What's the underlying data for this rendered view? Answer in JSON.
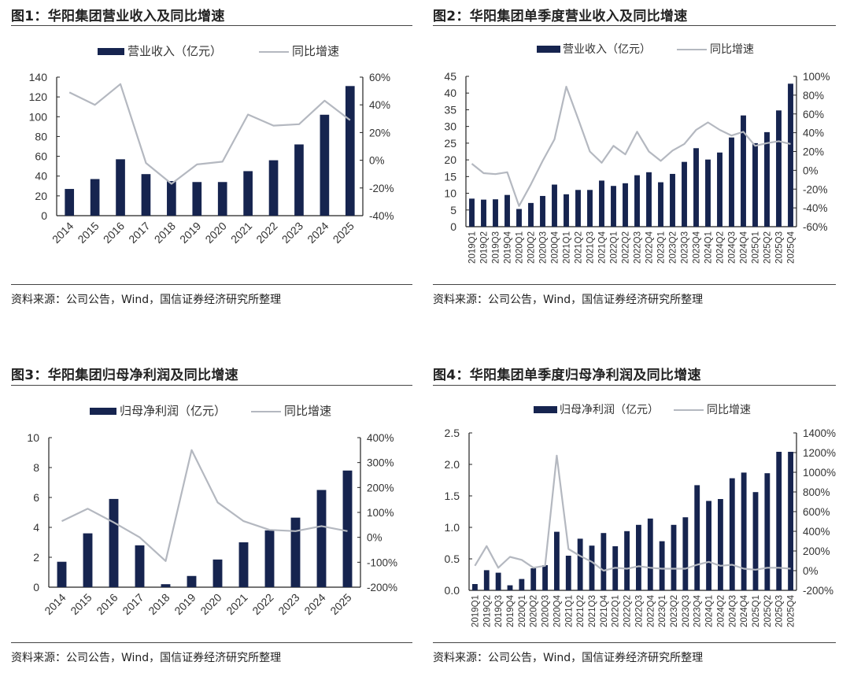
{
  "source_note": "资料来源：公司公告，Wind，国信证券经济研究所整理",
  "colors": {
    "bar": "#16244f",
    "line": "#b4b8c0",
    "axis": "#222222"
  },
  "chart_data": [
    {
      "type": "bar",
      "title": "图1：华阳集团营业收入及同比增速",
      "legend": [
        "营业收入（亿元）",
        "同比增速"
      ],
      "legend_position": "top",
      "categories": [
        "2014",
        "2015",
        "2016",
        "2017",
        "2018",
        "2019",
        "2020",
        "2021",
        "2022",
        "2023",
        "2024",
        "2025"
      ],
      "x_label_rotate": "diagonal",
      "series": [
        {
          "name": "营业收入（亿元）",
          "kind": "bar",
          "axis": "left",
          "values": [
            27,
            37,
            57,
            42,
            35,
            34,
            34,
            45,
            56,
            72,
            102,
            131
          ]
        },
        {
          "name": "同比增速",
          "kind": "line",
          "axis": "right",
          "values": [
            49,
            40,
            55,
            -2,
            -17,
            -3,
            -1,
            33,
            25,
            26,
            43,
            29
          ]
        }
      ],
      "ylim": [
        0,
        140
      ],
      "yticks": [
        "0",
        "20",
        "40",
        "60",
        "80",
        "100",
        "120",
        "140"
      ],
      "y2lim": [
        -40,
        60
      ],
      "y2ticks": [
        "-40%",
        "-20%",
        "0%",
        "20%",
        "40%",
        "60%"
      ]
    },
    {
      "type": "bar",
      "title": "图2：华阳集团单季度营业收入及同比增速",
      "legend": [
        "营业收入（亿元）",
        "同比增速"
      ],
      "legend_position": "top",
      "categories": [
        "2019Q1",
        "2019Q2",
        "2019Q3",
        "2019Q4",
        "2020Q1",
        "2020Q2",
        "2020Q3",
        "2020Q4",
        "2021Q1",
        "2021Q2",
        "2021Q3",
        "2021Q4",
        "2022Q1",
        "2022Q2",
        "2022Q3",
        "2022Q4",
        "2023Q1",
        "2023Q2",
        "2023Q3",
        "2023Q4",
        "2024Q1",
        "2024Q2",
        "2024Q3",
        "2024Q4",
        "2025Q1",
        "2025Q2",
        "2025Q3",
        "2025Q4"
      ],
      "x_label_rotate": "vertical",
      "series": [
        {
          "name": "营业收入（亿元）",
          "kind": "bar",
          "axis": "left",
          "values": [
            8.4,
            8.1,
            8.2,
            9.5,
            5.3,
            7.1,
            9.2,
            12.6,
            9.7,
            11.0,
            11.0,
            13.8,
            12.2,
            13.0,
            15.4,
            16.3,
            13.3,
            15.8,
            19.4,
            23.5,
            20.1,
            22.2,
            26.7,
            33.3,
            25.0,
            28.3,
            34.8,
            42.8
          ]
        },
        {
          "name": "同比增速",
          "kind": "line",
          "axis": "right",
          "values": [
            7,
            -3,
            -4,
            -2,
            -38,
            -15,
            10,
            33,
            89,
            55,
            20,
            8,
            26,
            17,
            41,
            20,
            10,
            21,
            28,
            43,
            51,
            43,
            37,
            41,
            26,
            29,
            31,
            28
          ]
        }
      ],
      "ylim": [
        0,
        45
      ],
      "yticks": [
        "0",
        "5",
        "10",
        "15",
        "20",
        "25",
        "30",
        "35",
        "40",
        "45"
      ],
      "y2lim": [
        -60,
        100
      ],
      "y2ticks": [
        "-60%",
        "-40%",
        "-20%",
        "0%",
        "20%",
        "40%",
        "60%",
        "80%",
        "100%"
      ]
    },
    {
      "type": "bar",
      "title": "图3：华阳集团归母净利润及同比增速",
      "legend": [
        "归母净利润（亿元）",
        "同比增速"
      ],
      "legend_position": "top",
      "categories": [
        "2014",
        "2015",
        "2016",
        "2017",
        "2018",
        "2019",
        "2020",
        "2021",
        "2022",
        "2023",
        "2024",
        "2025"
      ],
      "x_label_rotate": "diagonal",
      "series": [
        {
          "name": "归母净利润（亿元）",
          "kind": "bar",
          "axis": "left",
          "values": [
            1.7,
            3.6,
            5.9,
            2.8,
            0.2,
            0.75,
            1.85,
            3.0,
            3.8,
            4.65,
            6.5,
            7.8
          ]
        },
        {
          "name": "同比增速",
          "kind": "line",
          "axis": "right",
          "values": [
            65,
            115,
            60,
            0,
            -95,
            350,
            140,
            65,
            30,
            25,
            45,
            25
          ]
        }
      ],
      "ylim": [
        0,
        10
      ],
      "yticks": [
        "0",
        "2",
        "4",
        "6",
        "8",
        "10"
      ],
      "y2lim": [
        -200,
        400
      ],
      "y2ticks": [
        "-200%",
        "-100%",
        "0%",
        "100%",
        "200%",
        "300%",
        "400%"
      ]
    },
    {
      "type": "bar",
      "title": "图4：华阳集团单季度归母净利润及同比增速",
      "legend": [
        "归母净利润（亿元）",
        "同比增速"
      ],
      "legend_position": "top",
      "categories": [
        "2019Q1",
        "2019Q2",
        "2019Q3",
        "2019Q4",
        "2020Q1",
        "2020Q2",
        "2020Q3",
        "2020Q4",
        "2021Q1",
        "2021Q2",
        "2021Q3",
        "2021Q4",
        "2022Q1",
        "2022Q2",
        "2022Q3",
        "2022Q4",
        "2023Q1",
        "2023Q2",
        "2023Q3",
        "2023Q4",
        "2024Q1",
        "2024Q2",
        "2024Q3",
        "2024Q4",
        "2025Q1",
        "2025Q2",
        "2025Q3",
        "2025Q4"
      ],
      "x_label_rotate": "vertical",
      "series": [
        {
          "name": "归母净利润（亿元）",
          "kind": "bar",
          "axis": "left",
          "values": [
            0.1,
            0.32,
            0.28,
            0.08,
            0.18,
            0.35,
            0.4,
            0.93,
            0.55,
            0.82,
            0.71,
            0.91,
            0.7,
            0.94,
            1.04,
            1.14,
            0.78,
            1.04,
            1.16,
            1.67,
            1.42,
            1.45,
            1.78,
            1.87,
            1.56,
            1.86,
            2.2,
            2.2
          ]
        },
        {
          "name": "同比增速",
          "kind": "line",
          "axis": "right",
          "values": [
            50,
            250,
            30,
            140,
            110,
            30,
            50,
            1170,
            220,
            150,
            90,
            0,
            30,
            20,
            45,
            30,
            20,
            20,
            20,
            60,
            90,
            50,
            60,
            20,
            10,
            30,
            30,
            20
          ]
        }
      ],
      "ylim": [
        0,
        2.5
      ],
      "yticks": [
        "0.0",
        "0.5",
        "1.0",
        "1.5",
        "2.0",
        "2.5"
      ],
      "y2lim": [
        -200,
        1400
      ],
      "y2ticks": [
        "-200%",
        "0%",
        "200%",
        "400%",
        "600%",
        "800%",
        "1000%",
        "1200%",
        "1400%"
      ]
    }
  ]
}
